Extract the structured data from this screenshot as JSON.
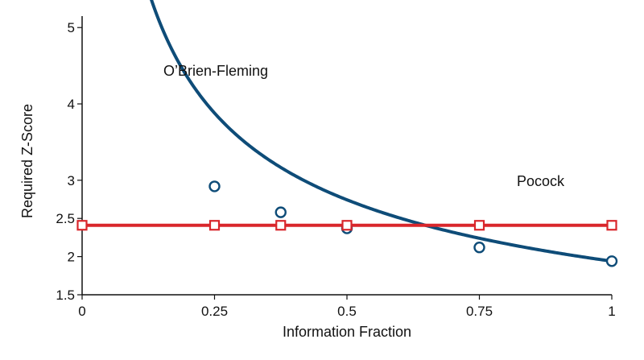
{
  "chart_data": {
    "type": "line",
    "title": "",
    "xlabel": "Information Fraction",
    "ylabel": "Required Z-Score",
    "xlim": [
      0,
      1
    ],
    "ylim": [
      1.5,
      5.15
    ],
    "x_ticks": [
      {
        "value": 0,
        "label": "0"
      },
      {
        "value": 0.25,
        "label": "0.25"
      },
      {
        "value": 0.5,
        "label": "0.5"
      },
      {
        "value": 0.75,
        "label": "0.75"
      },
      {
        "value": 1,
        "label": "1"
      }
    ],
    "y_ticks": [
      {
        "value": 1.5,
        "label": "1.5"
      },
      {
        "value": 2,
        "label": "2"
      },
      {
        "value": 2.5,
        "label": "2.5"
      },
      {
        "value": 3,
        "label": "3"
      },
      {
        "value": 4,
        "label": "4"
      },
      {
        "value": 5,
        "label": "5"
      }
    ],
    "grid": false,
    "series": [
      {
        "name": "O'Brien-Fleming",
        "label_text": "O’Brien-Fleming",
        "color": "#0e4c78",
        "marker": "circle",
        "curve_constant": 1.94,
        "curve_x_start": 0.1,
        "points": [
          {
            "x": 0.25,
            "y": 2.92
          },
          {
            "x": 0.375,
            "y": 2.58
          },
          {
            "x": 0.5,
            "y": 2.37
          },
          {
            "x": 0.75,
            "y": 2.12
          },
          {
            "x": 1,
            "y": 1.94
          }
        ]
      },
      {
        "name": "Pocock",
        "label_text": "Pocock",
        "color": "#d9262b",
        "marker": "square",
        "constant_y": 2.41,
        "points": [
          {
            "x": 0,
            "y": 2.41
          },
          {
            "x": 0.25,
            "y": 2.41
          },
          {
            "x": 0.375,
            "y": 2.41
          },
          {
            "x": 0.5,
            "y": 2.41
          },
          {
            "x": 0.75,
            "y": 2.41
          },
          {
            "x": 1,
            "y": 2.41
          }
        ]
      }
    ]
  }
}
